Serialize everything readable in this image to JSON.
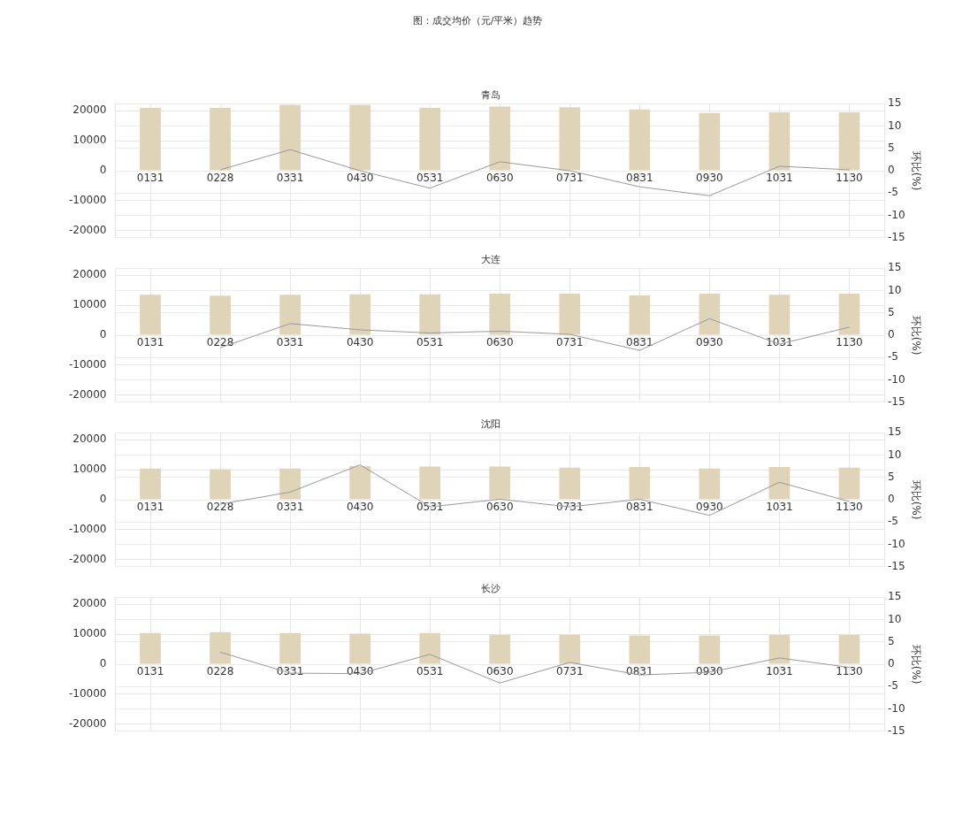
{
  "chart_data": [
    {
      "type": "bar",
      "title": "图：成交均价（元/平米）趋势",
      "subtitle": "青岛",
      "y2label": "环比(%)",
      "categories": [
        "0131",
        "0228",
        "0331",
        "0430",
        "0531",
        "0630",
        "0731",
        "0831",
        "0930",
        "1031",
        "1130"
      ],
      "ylim": [
        -22400,
        22400
      ],
      "yticks": [
        -20000,
        -10000,
        0,
        10000,
        20000
      ],
      "y2lim": [
        -15,
        15
      ],
      "y2ticks": [
        -15,
        -10,
        -5,
        0,
        5,
        10,
        15
      ],
      "grid": true,
      "legend": false,
      "series": [
        {
          "color": "#e0d4b8",
          "values": [
            21000,
            21000,
            22000,
            22000,
            21000,
            21400,
            21200,
            20500,
            19300,
            19500,
            19500
          ]
        },
        {
          "type": "line",
          "axis": "y2",
          "color": "#999999",
          "marker": "none",
          "values": [
            null,
            0.2,
            4.7,
            0,
            -3.9,
            2.0,
            0,
            -3.6,
            -5.6,
            1.0,
            0.2
          ]
        }
      ]
    },
    {
      "type": "bar",
      "title": "大连",
      "y2label": "环比(%)",
      "categories": [
        "0131",
        "0228",
        "0331",
        "0430",
        "0531",
        "0630",
        "0731",
        "0831",
        "0930",
        "1031",
        "1130"
      ],
      "ylim": [
        -22400,
        22400
      ],
      "yticks": [
        -20000,
        -10000,
        0,
        10000,
        20000
      ],
      "y2lim": [
        -15,
        15
      ],
      "y2ticks": [
        -15,
        -10,
        -5,
        0,
        5,
        10,
        15
      ],
      "grid": true,
      "legend": false,
      "series": [
        {
          "color": "#e0d4b8",
          "values": [
            13500,
            13200,
            13500,
            13700,
            13700,
            13900,
            13900,
            13300,
            13900,
            13500,
            13900
          ]
        },
        {
          "type": "line",
          "axis": "y2",
          "color": "#999999",
          "marker": "none",
          "values": [
            null,
            -2.8,
            2.6,
            1.2,
            0.5,
            0.9,
            0.2,
            -3.4,
            3.7,
            -2.0,
            1.8
          ]
        }
      ]
    },
    {
      "type": "bar",
      "title": "沈阳",
      "y2label": "环比(%)",
      "categories": [
        "0131",
        "0228",
        "0331",
        "0430",
        "0531",
        "0630",
        "0731",
        "0831",
        "0930",
        "1031",
        "1130"
      ],
      "ylim": [
        -22400,
        22400
      ],
      "yticks": [
        -20000,
        -10000,
        0,
        10000,
        20000
      ],
      "y2lim": [
        -15,
        15
      ],
      "y2ticks": [
        -15,
        -10,
        -5,
        0,
        5,
        10,
        15
      ],
      "grid": true,
      "legend": false,
      "series": [
        {
          "color": "#e0d4b8",
          "values": [
            10400,
            10200,
            10400,
            11200,
            11100,
            11100,
            10700,
            10900,
            10400,
            10900,
            10700
          ]
        },
        {
          "type": "line",
          "axis": "y2",
          "color": "#999999",
          "marker": "none",
          "values": [
            null,
            -1.0,
            1.7,
            7.8,
            -1.6,
            0.1,
            -1.6,
            0.1,
            -3.5,
            3.9,
            -0.4
          ]
        }
      ]
    },
    {
      "type": "bar",
      "title": "长沙",
      "y2label": "环比(%)",
      "categories": [
        "0131",
        "0228",
        "0331",
        "0430",
        "0531",
        "0630",
        "0731",
        "0831",
        "0930",
        "1031",
        "1130"
      ],
      "ylim": [
        -22400,
        22400
      ],
      "yticks": [
        -20000,
        -10000,
        0,
        10000,
        20000
      ],
      "y2lim": [
        -15,
        15
      ],
      "y2ticks": [
        -15,
        -10,
        -5,
        0,
        5,
        10,
        15
      ],
      "grid": true,
      "legend": false,
      "series": [
        {
          "color": "#e0d4b8",
          "values": [
            10400,
            10700,
            10400,
            10200,
            10400,
            9800,
            9800,
            9600,
            9600,
            9800,
            9800
          ]
        },
        {
          "type": "line",
          "axis": "y2",
          "color": "#999999",
          "marker": "none",
          "values": [
            null,
            2.7,
            -2.0,
            -2.1,
            2.2,
            -4.2,
            0.4,
            -2.4,
            -1.8,
            1.4,
            -0.7
          ]
        }
      ]
    }
  ]
}
